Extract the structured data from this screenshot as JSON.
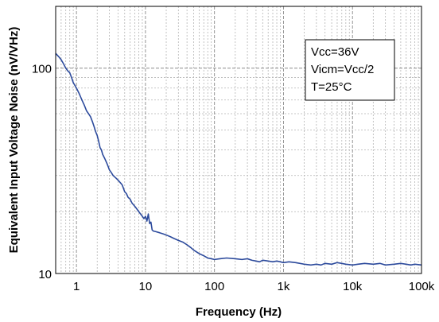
{
  "chart_data": {
    "type": "line",
    "xlabel": "Frequency (Hz)",
    "ylabel": "Equivalent Input Voltage Noise (nV/VHz)",
    "x_scale": "log",
    "y_scale": "log",
    "xlim": [
      0.5,
      100000
    ],
    "ylim": [
      10,
      200
    ],
    "x_ticks": [
      1,
      10,
      100,
      1000,
      10000,
      100000
    ],
    "x_tick_labels": [
      "1",
      "10",
      "100",
      "1k",
      "10k",
      "100k"
    ],
    "y_ticks": [
      10,
      100
    ],
    "y_tick_labels": [
      "10",
      "100"
    ],
    "grid": true,
    "annotation": {
      "lines": [
        "Vcc=36V",
        "Vicm=Vcc/2",
        "T=25°C"
      ],
      "placement": "top-right"
    },
    "series": [
      {
        "color": "#2c4a9c",
        "x": [
          0.5,
          0.55,
          0.6,
          0.65,
          0.7,
          0.75,
          0.8,
          0.85,
          0.9,
          1.0,
          1.1,
          1.2,
          1.3,
          1.4,
          1.5,
          1.6,
          1.7,
          1.8,
          1.9,
          2.0,
          2.1,
          2.2,
          2.3,
          2.4,
          2.5,
          2.6,
          2.7,
          2.8,
          2.9,
          3.0,
          3.2,
          3.4,
          3.6,
          3.8,
          4.0,
          4.2,
          4.4,
          4.6,
          4.8,
          5.0,
          5.3,
          5.6,
          6.0,
          6.4,
          6.8,
          7.2,
          7.6,
          8.0,
          8.5,
          9.0,
          9.5,
          10,
          10.5,
          11,
          11.5,
          12,
          12.5,
          13,
          14,
          16,
          18,
          20,
          23,
          26,
          30,
          35,
          40,
          45,
          50,
          60,
          70,
          80,
          90,
          100,
          120,
          150,
          200,
          250,
          300,
          350,
          400,
          450,
          500,
          600,
          700,
          800,
          900,
          1000,
          1200,
          1500,
          2000,
          2500,
          3000,
          3500,
          4000,
          5000,
          6000,
          7000,
          8000,
          10000,
          12000,
          15000,
          20000,
          25000,
          30000,
          40000,
          50000,
          60000,
          70000,
          80000,
          100000
        ],
        "values": [
          118,
          114,
          110,
          105,
          100,
          97,
          95,
          90,
          85,
          80,
          75,
          70,
          66,
          62,
          60,
          58,
          55,
          52,
          49,
          47,
          44,
          41,
          40,
          38,
          37,
          36,
          35,
          34,
          33,
          32,
          31,
          30,
          29.5,
          29,
          28.5,
          28,
          27.5,
          27,
          26,
          25,
          24.5,
          23.5,
          23,
          22,
          21.5,
          21,
          20.5,
          20,
          19.5,
          19,
          18.5,
          19,
          18,
          19.5,
          17.5,
          17.8,
          16.3,
          16.1,
          16.0,
          15.8,
          15.6,
          15.4,
          15.1,
          14.8,
          14.5,
          14.2,
          13.8,
          13.4,
          13.0,
          12.5,
          12.2,
          11.9,
          11.8,
          11.7,
          11.8,
          11.9,
          11.8,
          11.7,
          11.8,
          11.6,
          11.5,
          11.4,
          11.6,
          11.5,
          11.4,
          11.5,
          11.4,
          11.3,
          11.4,
          11.3,
          11.1,
          11.0,
          11.1,
          11.0,
          11.2,
          11.1,
          11.3,
          11.2,
          11.1,
          11.0,
          11.1,
          11.2,
          11.1,
          11.2,
          11.0,
          11.1,
          11.2,
          11.1,
          11.0,
          11.1,
          11.0
        ]
      }
    ]
  }
}
